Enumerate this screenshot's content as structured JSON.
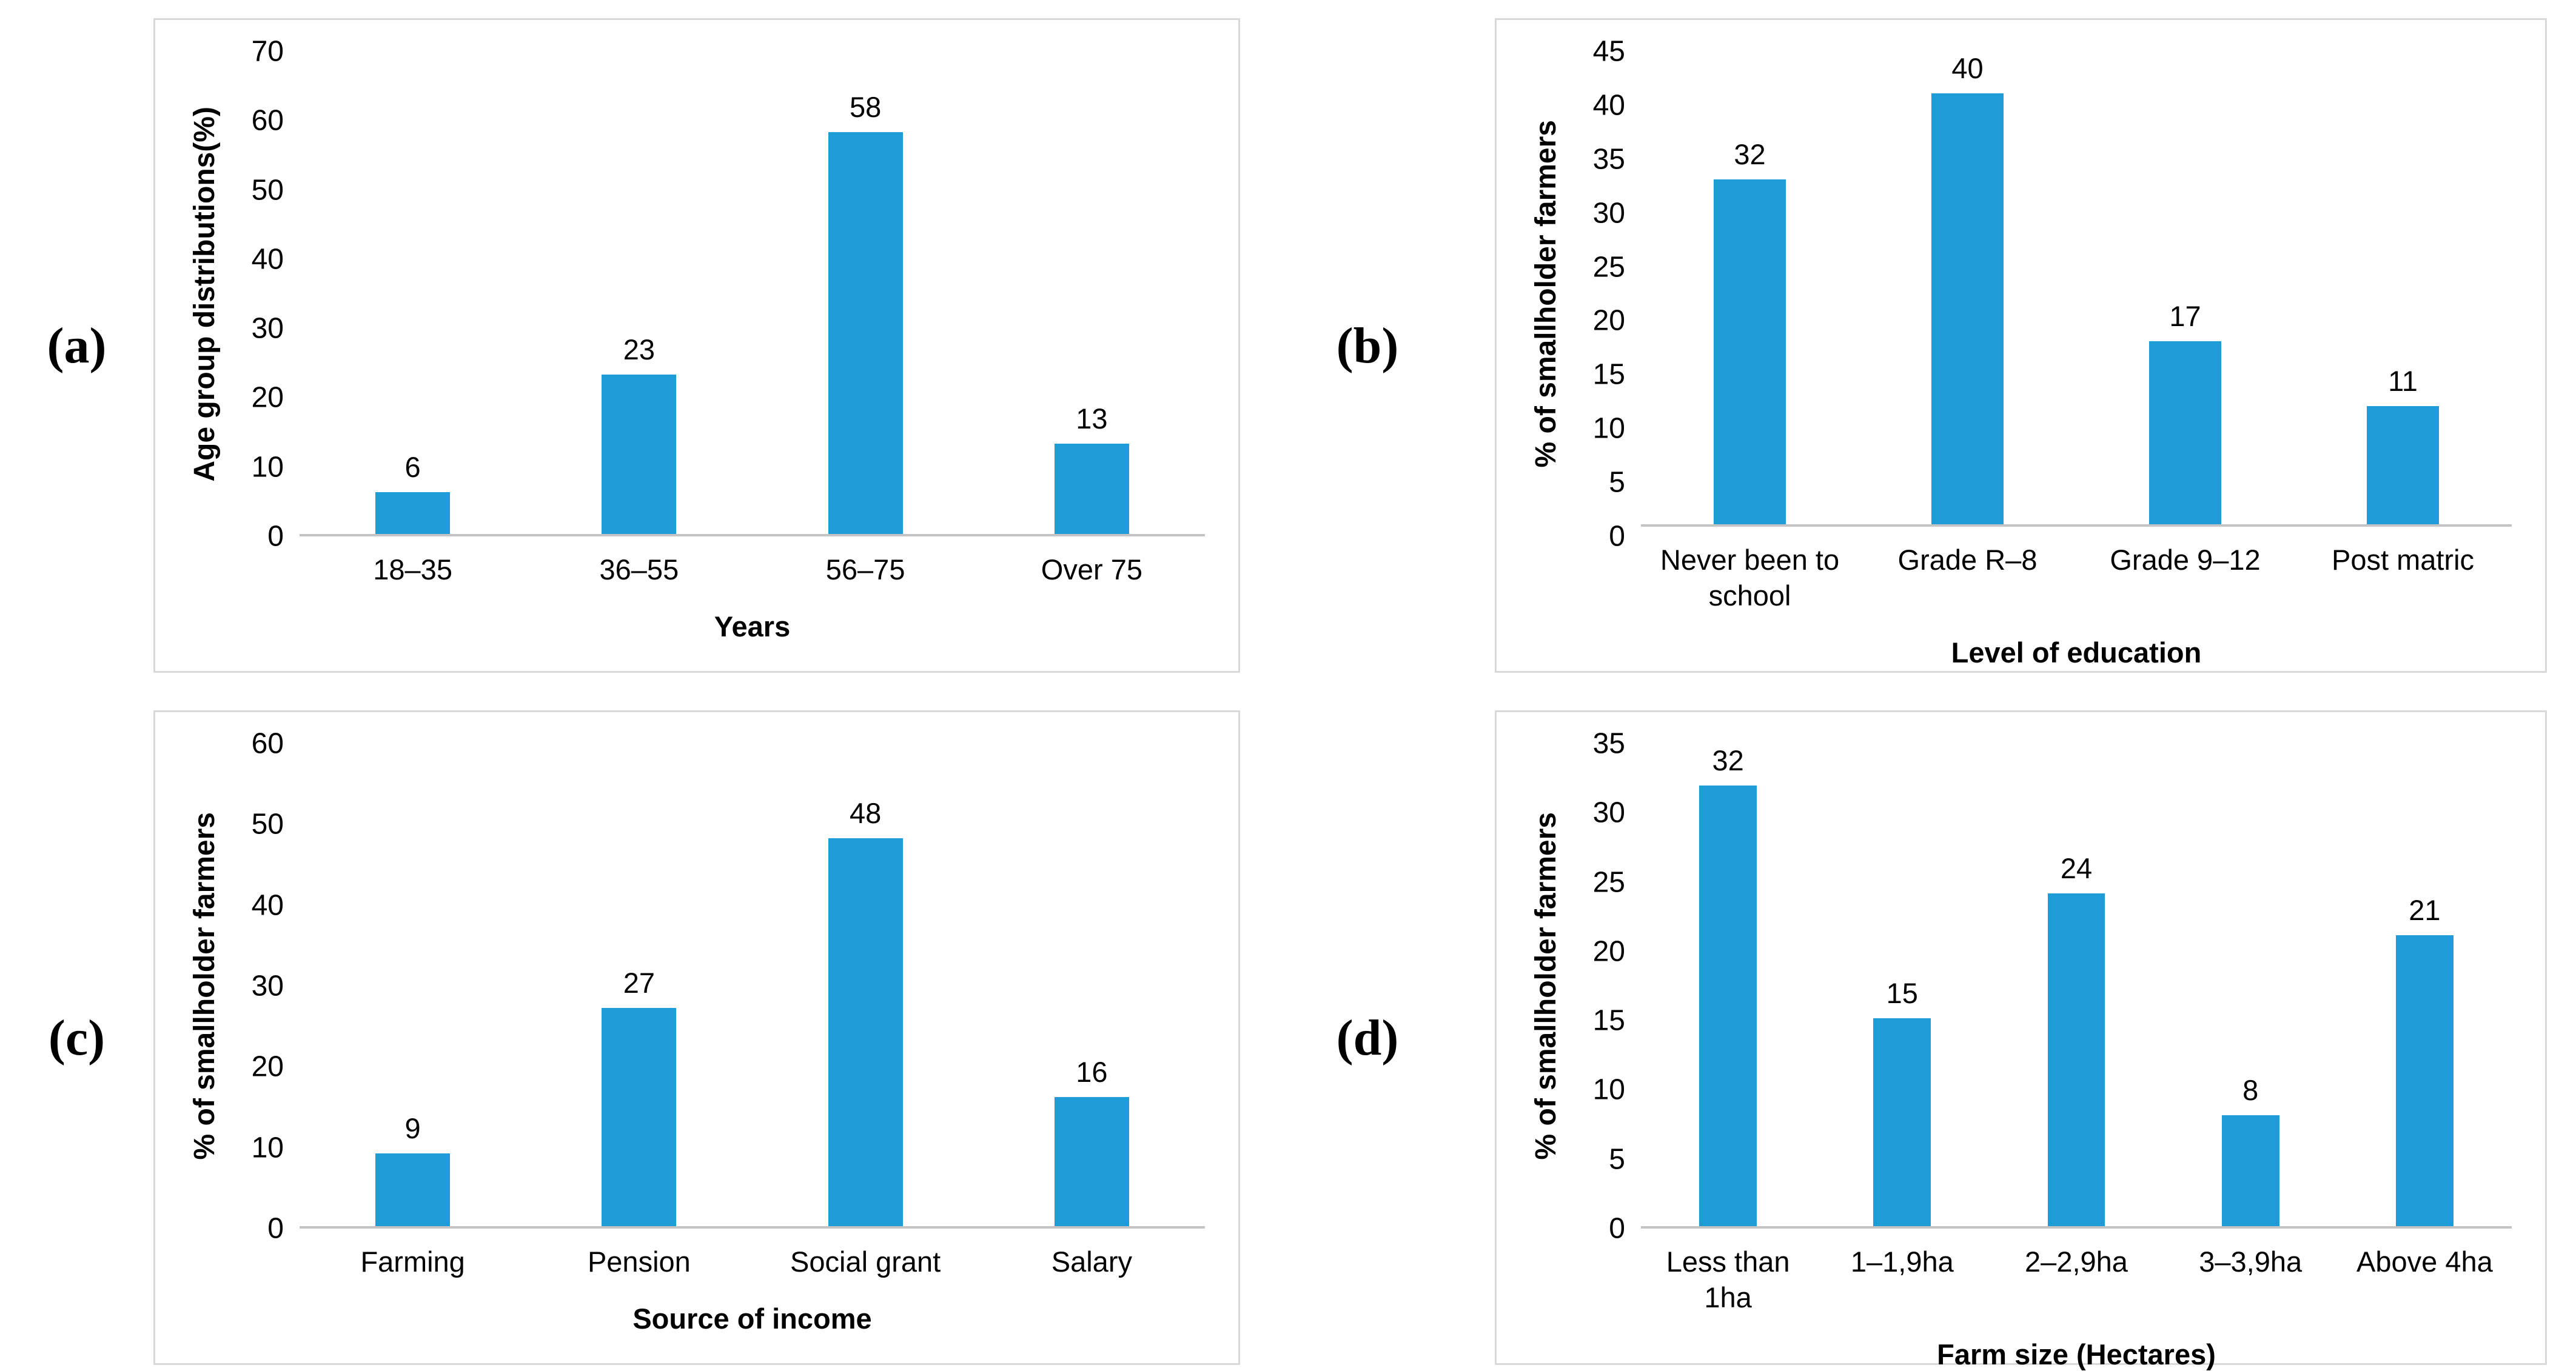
{
  "chart_data": [
    {
      "type": "bar",
      "tag": "(a)",
      "categories": [
        "18–35",
        "36–55",
        "56–75",
        "Over 75"
      ],
      "values": [
        6,
        23,
        58,
        13
      ],
      "title": "",
      "xlabel": "Years",
      "ylabel": "Age group distributions(%)",
      "ylim": [
        0,
        70
      ],
      "ytick_step": 10,
      "grid": false,
      "legend": "none",
      "bar_color": "#1e9cd8"
    },
    {
      "type": "bar",
      "tag": "(b)",
      "categories": [
        "Never been to school",
        "Grade R–8",
        "Grade 9–12",
        "Post matric"
      ],
      "values": [
        32,
        40,
        17,
        11
      ],
      "title": "",
      "xlabel": "Level of education",
      "ylabel": "% of smallholder farmers",
      "ylim": [
        0,
        45
      ],
      "ytick_step": 5,
      "grid": false,
      "legend": "none",
      "bar_color": "#1e9cd8"
    },
    {
      "type": "bar",
      "tag": "(c)",
      "categories": [
        "Farming",
        "Pension",
        "Social grant",
        "Salary"
      ],
      "values": [
        9,
        27,
        48,
        16
      ],
      "title": "",
      "xlabel": "Source of income",
      "ylabel": "% of smallholder farmers",
      "ylim": [
        0,
        60
      ],
      "ytick_step": 10,
      "grid": false,
      "legend": "none",
      "bar_color": "#1e9cd8"
    },
    {
      "type": "bar",
      "tag": "(d)",
      "categories": [
        "Less than 1ha",
        "1–1,9ha",
        "2–2,9ha",
        "3–3,9ha",
        "Above 4ha"
      ],
      "values": [
        32,
        15,
        24,
        8,
        21
      ],
      "title": "",
      "xlabel": "Farm size (Hectares)",
      "ylabel": "% of smallholder farmers",
      "ylim": [
        0,
        35
      ],
      "ytick_step": 5,
      "grid": false,
      "legend": "none",
      "bar_color": "#1e9cd8"
    }
  ],
  "style": {
    "bar_color": "#1e9cd8",
    "panel_border_color": "#d9d9d9",
    "axis_line_color": "#c4c4c4",
    "text_color": "#000000"
  }
}
